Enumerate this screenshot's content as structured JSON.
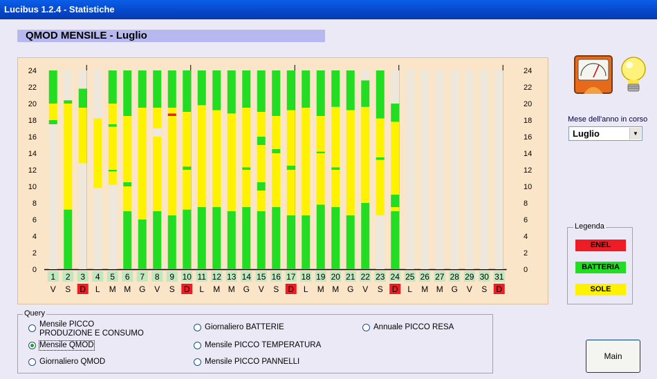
{
  "window": {
    "title": "Lucibus 1.2.4 - Statistiche"
  },
  "page": {
    "title": "QMOD MENSILE - Luglio"
  },
  "month_selector": {
    "label": "Mese dell'anno in corso",
    "value": "Luglio"
  },
  "legend": {
    "title": "Legenda",
    "items": [
      {
        "label": "ENEL",
        "color": "#EE1C24"
      },
      {
        "label": "BATTERIA",
        "color": "#22DD22"
      },
      {
        "label": "SOLE",
        "color": "#FFF200"
      }
    ]
  },
  "query": {
    "title": "Query",
    "options": [
      {
        "label": "Mensile PICCO",
        "label2": "PRODUZIONE E CONSUMO",
        "selected": false
      },
      {
        "label": "Mensile QMOD",
        "selected": true
      },
      {
        "label": "Giornaliero QMOD",
        "selected": false
      },
      {
        "label": "Giornaliero BATTERIE",
        "selected": false
      },
      {
        "label": "Mensile PICCO TEMPERATURA",
        "selected": false
      },
      {
        "label": "Mensile PICCO PANNELLI",
        "selected": false
      },
      {
        "label": "Annuale PICCO RESA",
        "selected": false
      }
    ]
  },
  "buttons": {
    "main": "Main"
  },
  "icons": {
    "gauge": "gauge-meter-icon",
    "bulb": "light-bulb-icon"
  },
  "chart_data": {
    "type": "bar",
    "y_ticks": [
      0,
      2,
      4,
      6,
      8,
      10,
      12,
      14,
      16,
      18,
      20,
      22,
      24
    ],
    "ylim": [
      0,
      24
    ],
    "categories": [
      "1",
      "2",
      "3",
      "4",
      "5",
      "6",
      "7",
      "8",
      "9",
      "10",
      "11",
      "12",
      "13",
      "14",
      "15",
      "16",
      "17",
      "18",
      "19",
      "20",
      "21",
      "22",
      "23",
      "24",
      "25",
      "26",
      "27",
      "28",
      "29",
      "30",
      "31"
    ],
    "weekdays": [
      "V",
      "S",
      "D",
      "L",
      "M",
      "M",
      "G",
      "V",
      "S",
      "D",
      "L",
      "M",
      "M",
      "G",
      "V",
      "S",
      "D",
      "L",
      "M",
      "M",
      "G",
      "V",
      "S",
      "D",
      "L",
      "M",
      "M",
      "G",
      "V",
      "S",
      "D"
    ],
    "sunday_color": "#EE1C24",
    "background_color": "#EEE8DC",
    "days": [
      [
        [
          0,
          17.5,
          "bg"
        ],
        [
          17.5,
          18,
          "batt"
        ],
        [
          18,
          20,
          "sole"
        ],
        [
          20,
          24,
          "batt"
        ]
      ],
      [
        [
          0,
          7.2,
          "batt"
        ],
        [
          7.2,
          20,
          "sole"
        ],
        [
          20,
          20.4,
          "batt"
        ],
        [
          20.4,
          24,
          "bg"
        ]
      ],
      [
        [
          0,
          12.8,
          "bg"
        ],
        [
          12.8,
          19.5,
          "sole"
        ],
        [
          19.5,
          21.8,
          "batt"
        ],
        [
          21.8,
          24,
          "bg"
        ]
      ],
      [
        [
          0,
          9.8,
          "bg"
        ],
        [
          9.8,
          18.2,
          "sole"
        ],
        [
          18.2,
          24,
          "bg"
        ]
      ],
      [
        [
          0,
          10.2,
          "bg"
        ],
        [
          10.2,
          11.8,
          "sole"
        ],
        [
          11.8,
          12,
          "batt"
        ],
        [
          12,
          17.2,
          "sole"
        ],
        [
          17.2,
          17.5,
          "batt"
        ],
        [
          17.5,
          20,
          "sole"
        ],
        [
          20,
          24,
          "batt"
        ]
      ],
      [
        [
          0,
          7,
          "batt"
        ],
        [
          7,
          10,
          "sole"
        ],
        [
          10,
          10.5,
          "batt"
        ],
        [
          10.5,
          18.5,
          "sole"
        ],
        [
          18.5,
          19,
          "batt"
        ],
        [
          19,
          24,
          "batt"
        ]
      ],
      [
        [
          0,
          6,
          "batt"
        ],
        [
          6,
          7.5,
          "sole"
        ],
        [
          7.5,
          19.5,
          "sole"
        ],
        [
          19.5,
          24,
          "batt"
        ]
      ],
      [
        [
          0,
          7,
          "batt"
        ],
        [
          7,
          7.5,
          "sole"
        ],
        [
          7.5,
          16,
          "sole"
        ],
        [
          16,
          17,
          "bg"
        ],
        [
          17,
          19.5,
          "sole"
        ],
        [
          19.5,
          24,
          "batt"
        ]
      ],
      [
        [
          0,
          6.5,
          "batt"
        ],
        [
          6.5,
          7,
          "sole"
        ],
        [
          7,
          18.5,
          "sole"
        ],
        [
          18.5,
          18.8,
          "enel"
        ],
        [
          18.8,
          19.5,
          "sole"
        ],
        [
          19.5,
          24,
          "batt"
        ]
      ],
      [
        [
          0,
          7.2,
          "batt"
        ],
        [
          7.2,
          12,
          "sole"
        ],
        [
          12,
          12.4,
          "batt"
        ],
        [
          12.4,
          19,
          "sole"
        ],
        [
          19,
          24,
          "batt"
        ]
      ],
      [
        [
          0,
          7.5,
          "batt"
        ],
        [
          7.5,
          19.8,
          "sole"
        ],
        [
          19.8,
          24,
          "batt"
        ]
      ],
      [
        [
          0,
          7.5,
          "batt"
        ],
        [
          7.5,
          19.2,
          "sole"
        ],
        [
          19.2,
          24,
          "batt"
        ]
      ],
      [
        [
          0,
          7,
          "batt"
        ],
        [
          7,
          18.8,
          "sole"
        ],
        [
          18.8,
          19.5,
          "batt"
        ],
        [
          19.5,
          24,
          "batt"
        ]
      ],
      [
        [
          0,
          7.5,
          "batt"
        ],
        [
          7.5,
          12,
          "sole"
        ],
        [
          12,
          12.3,
          "batt"
        ],
        [
          12.3,
          19.5,
          "sole"
        ],
        [
          19.5,
          24,
          "batt"
        ]
      ],
      [
        [
          0,
          7,
          "batt"
        ],
        [
          7,
          9.5,
          "sole"
        ],
        [
          9.5,
          10.5,
          "batt"
        ],
        [
          10.5,
          15,
          "sole"
        ],
        [
          15,
          16,
          "batt"
        ],
        [
          16,
          19,
          "sole"
        ],
        [
          19,
          24,
          "batt"
        ]
      ],
      [
        [
          0,
          7.5,
          "batt"
        ],
        [
          7.5,
          8,
          "sole"
        ],
        [
          8,
          14,
          "sole"
        ],
        [
          14,
          14.5,
          "batt"
        ],
        [
          14.5,
          18.5,
          "sole"
        ],
        [
          18.5,
          24,
          "batt"
        ]
      ],
      [
        [
          0,
          6.5,
          "batt"
        ],
        [
          6.5,
          7.5,
          "sole"
        ],
        [
          7.5,
          12,
          "sole"
        ],
        [
          12,
          12.5,
          "batt"
        ],
        [
          12.5,
          19.2,
          "sole"
        ],
        [
          19.2,
          24,
          "batt"
        ]
      ],
      [
        [
          0,
          6.5,
          "batt"
        ],
        [
          6.5,
          7.5,
          "sole"
        ],
        [
          7.5,
          19.5,
          "sole"
        ],
        [
          19.5,
          24,
          "batt"
        ]
      ],
      [
        [
          0,
          7.8,
          "batt"
        ],
        [
          7.8,
          14,
          "sole"
        ],
        [
          14,
          14.2,
          "batt"
        ],
        [
          14.2,
          18.5,
          "sole"
        ],
        [
          18.5,
          24,
          "batt"
        ]
      ],
      [
        [
          0,
          7.5,
          "batt"
        ],
        [
          7.5,
          12,
          "sole"
        ],
        [
          12,
          12.3,
          "batt"
        ],
        [
          12.3,
          19.6,
          "sole"
        ],
        [
          19.6,
          24,
          "batt"
        ]
      ],
      [
        [
          0,
          6.5,
          "batt"
        ],
        [
          6.5,
          7.5,
          "sole"
        ],
        [
          7.5,
          19.2,
          "sole"
        ],
        [
          19.2,
          24,
          "batt"
        ]
      ],
      [
        [
          0,
          8,
          "batt"
        ],
        [
          8,
          19.6,
          "sole"
        ],
        [
          19.6,
          22.8,
          "batt"
        ],
        [
          22.8,
          24,
          "bg"
        ]
      ],
      [
        [
          0,
          6.5,
          "bg"
        ],
        [
          6.5,
          7,
          "sole"
        ],
        [
          7,
          13.2,
          "sole"
        ],
        [
          13.2,
          13.5,
          "batt"
        ],
        [
          13.5,
          18.2,
          "sole"
        ],
        [
          18.2,
          24,
          "batt"
        ]
      ],
      [
        [
          0,
          7,
          "batt"
        ],
        [
          7,
          7.5,
          "sole"
        ],
        [
          7.5,
          9,
          "batt"
        ],
        [
          9,
          17.8,
          "sole"
        ],
        [
          17.8,
          20,
          "batt"
        ],
        [
          20,
          24,
          "bg"
        ]
      ],
      [
        [
          0,
          24,
          "bg"
        ]
      ],
      [
        [
          0,
          24,
          "bg"
        ]
      ],
      [
        [
          0,
          24,
          "bg"
        ]
      ],
      [
        [
          0,
          24,
          "bg"
        ]
      ],
      [
        [
          0,
          24,
          "bg"
        ]
      ],
      [
        [
          0,
          24,
          "bg"
        ]
      ],
      [
        [
          0,
          24,
          "bg"
        ]
      ]
    ]
  }
}
